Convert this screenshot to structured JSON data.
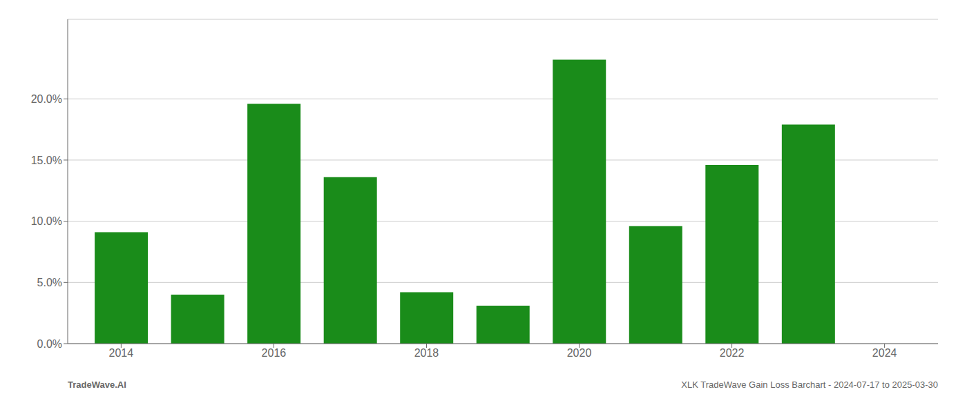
{
  "chart_data": {
    "type": "bar",
    "x": [
      2014,
      2015,
      2016,
      2017,
      2018,
      2019,
      2020,
      2021,
      2022,
      2023
    ],
    "values": [
      0.091,
      0.04,
      0.196,
      0.136,
      0.042,
      0.031,
      0.232,
      0.096,
      0.146,
      0.179
    ],
    "color": "#1a8c1a",
    "xlim": [
      2013.3,
      2024.7
    ],
    "xticks": [
      2014,
      2016,
      2018,
      2020,
      2022,
      2024
    ],
    "ylim": [
      0,
      0.265
    ],
    "yticks": [
      {
        "value": 0.0,
        "label": "0.0%"
      },
      {
        "value": 0.05,
        "label": "5.0%"
      },
      {
        "value": 0.1,
        "label": "10.0%"
      },
      {
        "value": 0.15,
        "label": "15.0%"
      },
      {
        "value": 0.2,
        "label": "20.0%"
      }
    ],
    "grid": true,
    "annotations": [
      "TradeWave.AI",
      "XLK TradeWave Gain Loss Barchart - 2024-07-17 to 2025-03-30"
    ]
  }
}
